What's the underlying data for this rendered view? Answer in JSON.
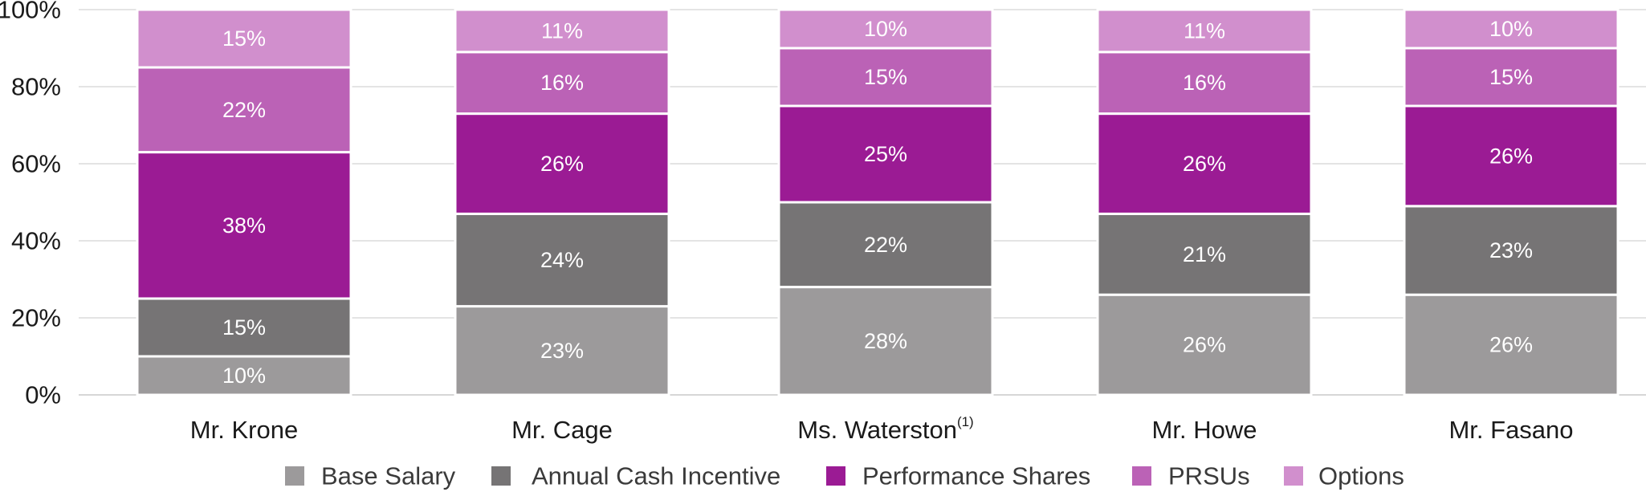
{
  "chart_data": {
    "type": "bar",
    "stacked": true,
    "title": "",
    "xlabel": "",
    "ylabel": "",
    "ylim": [
      0,
      100
    ],
    "yticks": [
      "0%",
      "20%",
      "40%",
      "60%",
      "80%",
      "100%"
    ],
    "categories": [
      "Mr. Krone",
      "Mr. Cage",
      "Ms. Waterston",
      "Mr. Howe",
      "Mr. Fasano"
    ],
    "category_superscripts": [
      "",
      "",
      "(1)",
      "",
      ""
    ],
    "series": [
      {
        "name": "Base Salary",
        "color": "#9c9a9b",
        "values": [
          10,
          23,
          28,
          26,
          26
        ]
      },
      {
        "name": "Annual Cash Incentive",
        "color": "#767475",
        "values": [
          15,
          24,
          22,
          21,
          23
        ]
      },
      {
        "name": "Performance Shares",
        "color": "#9b1b94",
        "values": [
          38,
          26,
          25,
          26,
          26
        ]
      },
      {
        "name": "PRSUs",
        "color": "#bb62b6",
        "values": [
          22,
          16,
          15,
          16,
          15
        ]
      },
      {
        "name": "Options",
        "color": "#d18fcd",
        "values": [
          15,
          11,
          10,
          11,
          10
        ]
      }
    ],
    "legend": "bottom",
    "grid": true
  }
}
